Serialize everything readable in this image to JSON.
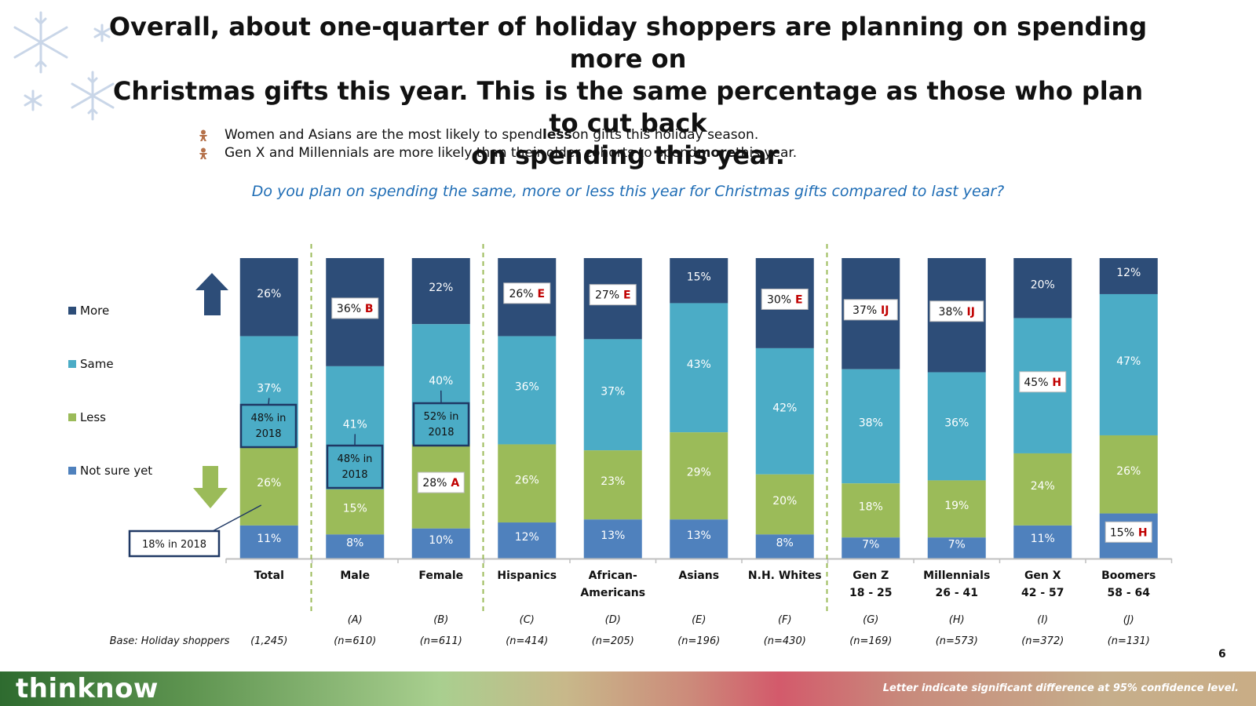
{
  "header": {
    "title_lines": [
      "Overall, about one-quarter of holiday shoppers are planning on spending more on",
      "Christmas gifts this year. This is the same percentage as those who plan to cut back",
      "on spending this year."
    ]
  },
  "bullets": [
    {
      "pre": "Women and Asians are the most likely to spend ",
      "bold": "less",
      "post": " on gifts this holiday season."
    },
    {
      "pre": "Gen X and Millennials are more likely than their older cohorts to spend ",
      "bold": "more",
      "post": " this year."
    }
  ],
  "question": "Do you plan on spending the same, more or less this year for Christmas gifts compared to last year?",
  "base_label": "Base: Holiday shoppers",
  "page_number": "6",
  "footer": {
    "logo": "thinknow",
    "note": "Letter indicate significant difference at 95% confidence level."
  },
  "colors": {
    "more": "#2d4d78",
    "same": "#4bacc6",
    "less": "#9bbb59",
    "not_sure": "#4f81bd",
    "sig": "#c00000",
    "callout_border": "#1f3864",
    "divider": "#9bbb59"
  },
  "chart_data": {
    "type": "stacked-bar",
    "legend": [
      "More",
      "Same",
      "Less",
      "Not sure yet"
    ],
    "series_order_top_to_bottom": [
      "More",
      "Same",
      "Less",
      "Not sure yet"
    ],
    "categories": [
      {
        "label": [
          "Total"
        ],
        "letter": "",
        "base": "(1,245)",
        "more": 26,
        "same": 37,
        "less": 26,
        "notsure": 11,
        "sig": {}
      },
      {
        "label": [
          "Male"
        ],
        "letter": "(A)",
        "base": "(n=610)",
        "more": 36,
        "same": 41,
        "less": 15,
        "notsure": 8,
        "sig": {
          "more": "B"
        }
      },
      {
        "label": [
          "Female"
        ],
        "letter": "(B)",
        "base": "(n=611)",
        "more": 22,
        "same": 40,
        "less": 28,
        "notsure": 10,
        "sig": {
          "less": "A"
        }
      },
      {
        "label": [
          "Hispanics"
        ],
        "letter": "(C)",
        "base": "(n=414)",
        "more": 26,
        "same": 36,
        "less": 26,
        "notsure": 12,
        "sig": {
          "more": "E"
        }
      },
      {
        "label": [
          "African-",
          "Americans"
        ],
        "letter": "(D)",
        "base": "(n=205)",
        "more": 27,
        "same": 37,
        "less": 23,
        "notsure": 13,
        "sig": {
          "more": "E"
        }
      },
      {
        "label": [
          "Asians"
        ],
        "letter": "(E)",
        "base": "(n=196)",
        "more": 15,
        "same": 43,
        "less": 29,
        "notsure": 13,
        "sig": {}
      },
      {
        "label": [
          "N.H. Whites"
        ],
        "letter": "(F)",
        "base": "(n=430)",
        "more": 30,
        "same": 42,
        "less": 20,
        "notsure": 8,
        "sig": {
          "more": "E"
        }
      },
      {
        "label": [
          "Gen Z",
          "18 - 25"
        ],
        "letter": "(G)",
        "base": "(n=169)",
        "more": 37,
        "same": 38,
        "less": 18,
        "notsure": 7,
        "sig": {
          "more": "IJ"
        }
      },
      {
        "label": [
          "Millennials",
          "26 - 41"
        ],
        "letter": "(H)",
        "base": "(n=573)",
        "more": 38,
        "same": 36,
        "less": 19,
        "notsure": 7,
        "sig": {
          "more": "IJ"
        }
      },
      {
        "label": [
          "Gen X",
          "42 - 57"
        ],
        "letter": "(I)",
        "base": "(n=372)",
        "more": 20,
        "same": 45,
        "less": 24,
        "notsure": 11,
        "sig": {
          "same": "H"
        }
      },
      {
        "label": [
          "Boomers",
          "58 - 64"
        ],
        "letter": "(J)",
        "base": "(n=131)",
        "more": 12,
        "same": 47,
        "less": 26,
        "notsure": 15,
        "sig": {
          "notsure": "H"
        }
      }
    ],
    "callouts": [
      {
        "text": [
          "48% in",
          "2018"
        ],
        "category": 0,
        "segment": "same"
      },
      {
        "text": [
          "48% in",
          "2018"
        ],
        "category": 1,
        "segment": "same"
      },
      {
        "text": [
          "52% in",
          "2018"
        ],
        "category": 2,
        "segment": "same"
      },
      {
        "text": [
          "18% in 2018"
        ],
        "category": 0,
        "segment": "less"
      }
    ],
    "ylim": [
      0,
      100
    ]
  }
}
